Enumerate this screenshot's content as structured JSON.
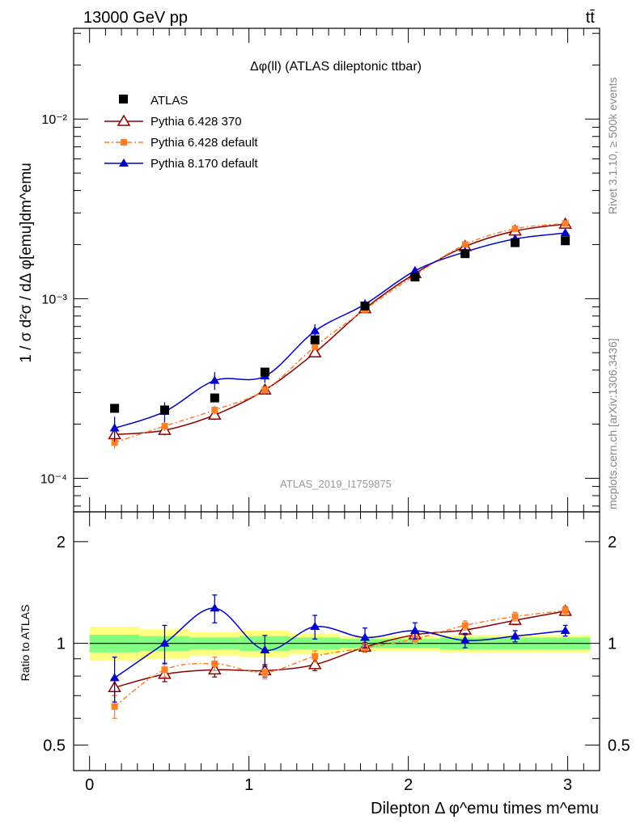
{
  "header": {
    "energy_label": "13000 GeV pp",
    "process_label": "tt̄"
  },
  "side_labels": {
    "rivet_label": "Rivet 3.1.10, ≥ 500k events",
    "mcplots_label": "mcplots.cern.ch [arXiv:1306.3436]"
  },
  "colors": {
    "atlas": "#000000",
    "pythia6_370": "#8b0000",
    "pythia6_default": "#ff7f27",
    "pythia8_default": "#0000cc",
    "band_inner": "#80ff80",
    "band_outer": "#ffff80"
  },
  "chart_data": {
    "type": "line",
    "title": "Δφ(ll) (ATLAS dileptonic ttbar)",
    "analysis_label": "ATLAS_2019_I1759875",
    "xlabel": "Dilepton Δ φ^emu times m^emu",
    "ylabel": "1 / σ  d²σ / dΔ φ[emu]dm^emu",
    "xlim": [
      -0.1,
      3.2
    ],
    "x": [
      0.157,
      0.471,
      0.785,
      1.1,
      1.414,
      1.728,
      2.042,
      2.356,
      2.67,
      2.985
    ],
    "main_panel": {
      "yscale": "log",
      "ylim": [
        6.5e-05,
        0.032
      ],
      "yticks": [
        {
          "value": 0.0001,
          "label": "10⁻⁴"
        },
        {
          "value": 0.001,
          "label": "10⁻³"
        },
        {
          "value": 0.01,
          "label": "10⁻²"
        }
      ],
      "legend_position": "top-left",
      "series": [
        {
          "name": "ATLAS",
          "marker": "square",
          "values": [
            0.000245,
            0.00024,
            0.00028,
            0.00039,
            0.00059,
            0.00091,
            0.00132,
            0.00178,
            0.00205,
            0.0021
          ]
        },
        {
          "name": "Pythia 6.428 370",
          "marker": "open-triangle",
          "values": [
            0.000175,
            0.000185,
            0.000225,
            0.00031,
            0.0005,
            0.00088,
            0.00138,
            0.00195,
            0.00238,
            0.0026
          ],
          "errors": [
            1.2e-05,
            1.2e-05,
            1.4e-05,
            1.6e-05,
            2e-05,
            3e-05,
            5e-05,
            6e-05,
            7e-05,
            8e-05
          ]
        },
        {
          "name": "Pythia 6.428 default",
          "marker": "small-square",
          "values": [
            0.000158,
            0.000195,
            0.00024,
            0.00031,
            0.00054,
            0.00087,
            0.00135,
            0.002,
            0.00245,
            0.00262
          ],
          "errors": [
            1.2e-05,
            1.2e-05,
            1.4e-05,
            1.6e-05,
            2e-05,
            3e-05,
            5e-05,
            6e-05,
            7e-05,
            8e-05
          ]
        },
        {
          "name": "Pythia 8.170 default",
          "marker": "filled-triangle",
          "values": [
            0.00019,
            0.000235,
            0.00035,
            0.00037,
            0.00066,
            0.00093,
            0.00143,
            0.00182,
            0.00215,
            0.00232
          ],
          "errors": [
            3e-05,
            3e-05,
            4e-05,
            3e-05,
            6e-05,
            6e-05,
            7e-05,
            7e-05,
            8e-05,
            9e-05
          ]
        }
      ]
    },
    "ratio_panel": {
      "ylabel": "Ratio to ATLAS",
      "yscale": "log",
      "ylim": [
        0.42,
        2.45
      ],
      "yticks": [
        {
          "value": 0.5,
          "label": "0.5"
        },
        {
          "value": 1,
          "label": "1"
        },
        {
          "value": 2,
          "label": "2"
        }
      ],
      "xticks": [
        {
          "value": 0,
          "label": "0"
        },
        {
          "value": 1,
          "label": "1"
        },
        {
          "value": 2,
          "label": "2"
        },
        {
          "value": 3,
          "label": "3"
        }
      ],
      "band_edges": [
        0,
        0.314,
        0.628,
        0.942,
        1.257,
        1.571,
        1.885,
        2.199,
        2.513,
        2.827,
        3.142
      ],
      "band_inner": [
        [
          0.94,
          1.06
        ],
        [
          0.95,
          1.05
        ],
        [
          0.96,
          1.04
        ],
        [
          0.95,
          1.05
        ],
        [
          0.96,
          1.04
        ],
        [
          0.97,
          1.03
        ],
        [
          0.97,
          1.03
        ],
        [
          0.96,
          1.04
        ],
        [
          0.96,
          1.04
        ],
        [
          0.96,
          1.04
        ]
      ],
      "band_outer": [
        [
          0.89,
          1.12
        ],
        [
          0.9,
          1.1
        ],
        [
          0.92,
          1.08
        ],
        [
          0.91,
          1.09
        ],
        [
          0.93,
          1.07
        ],
        [
          0.95,
          1.05
        ],
        [
          0.95,
          1.05
        ],
        [
          0.94,
          1.06
        ],
        [
          0.94,
          1.06
        ],
        [
          0.94,
          1.06
        ]
      ],
      "series": [
        {
          "name": "Pythia 6.428 370",
          "values": [
            0.74,
            0.81,
            0.835,
            0.83,
            0.865,
            0.975,
            1.06,
            1.095,
            1.17,
            1.245
          ],
          "errors": [
            0.04,
            0.04,
            0.04,
            0.035,
            0.035,
            0.03,
            0.03,
            0.035,
            0.035,
            0.035
          ]
        },
        {
          "name": "Pythia 6.428 default",
          "values": [
            0.65,
            0.835,
            0.87,
            0.82,
            0.915,
            0.97,
            1.03,
            1.13,
            1.2,
            1.25
          ],
          "errors": [
            0.05,
            0.04,
            0.04,
            0.035,
            0.035,
            0.03,
            0.03,
            0.035,
            0.035,
            0.035
          ]
        },
        {
          "name": "Pythia 8.170 default",
          "values": [
            0.79,
            1.0,
            1.27,
            0.955,
            1.12,
            1.04,
            1.09,
            1.02,
            1.05,
            1.09
          ],
          "errors": [
            0.12,
            0.13,
            0.12,
            0.1,
            0.09,
            0.07,
            0.06,
            0.05,
            0.04,
            0.04
          ]
        }
      ]
    }
  }
}
